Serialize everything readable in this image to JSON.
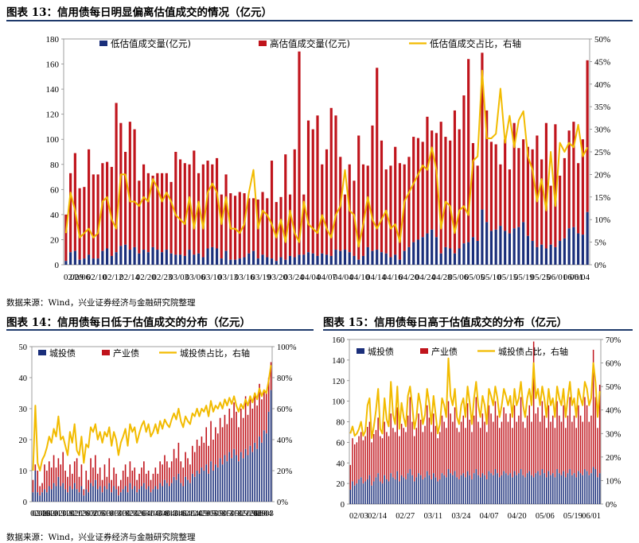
{
  "colors": {
    "navy": "#1a2e7a",
    "red": "#c0141c",
    "gold": "#f2bb00",
    "rule": "#1f3a6b"
  },
  "figure13": {
    "title": "图表 13：信用债每日明显偏离估值成交的情况（亿元）",
    "source": "数据来源：Wind，兴业证券经济与金融研究院整理"
  },
  "figure14": {
    "title": "图表 14：信用债每日低于估值成交的分布（亿元）",
    "source": "数据来源：Wind，兴业证券经济与金融研究院整理"
  },
  "figure15": {
    "title": "图表 15：信用债每日高于估值成交的分布（亿元）"
  },
  "chart_data": [
    {
      "id": "c13",
      "type": "bar",
      "stacked": true,
      "has_right_axis": true,
      "ylim": [
        0,
        180
      ],
      "yticks": [
        0,
        20,
        40,
        60,
        80,
        100,
        120,
        140,
        160,
        180
      ],
      "y2lim": [
        0,
        0.5
      ],
      "y2ticks": [
        "0%",
        "5%",
        "10%",
        "15%",
        "20%",
        "25%",
        "30%",
        "35%",
        "40%",
        "45%",
        "50%"
      ],
      "xticks": [
        "02/09",
        "02/06",
        "02/10",
        "02/12",
        "02/14",
        "02/20",
        "02/23",
        "03/03",
        "03/06",
        "03/10",
        "03/13",
        "03/16",
        "03/19",
        "03/20",
        "03/24",
        "04/04",
        "04/07",
        "04/04",
        "04/10",
        "04/14",
        "04/16",
        "04/20",
        "04/24",
        "04/28",
        "05/06",
        "05/05",
        "05/10",
        "05/15",
        "05/19",
        "05/25",
        "06/01",
        "06/01",
        "06/04"
      ],
      "legend": [
        "低估值成交量(亿元)",
        "高估值成交量(亿元)",
        "低估值成交占比，右轴"
      ],
      "bottom": [
        3,
        10,
        11,
        4,
        5,
        8,
        5,
        5,
        11,
        13,
        7,
        10,
        15,
        16,
        12,
        14,
        9,
        12,
        10,
        14,
        12,
        10,
        12,
        9,
        8,
        8,
        7,
        12,
        8,
        9,
        6,
        13,
        14,
        13,
        5,
        11,
        4,
        4,
        5,
        6,
        9,
        11,
        5,
        8,
        6,
        5,
        3,
        6,
        4,
        7,
        6,
        8,
        8,
        10,
        9,
        7,
        9,
        8,
        7,
        12,
        11,
        12,
        10,
        7,
        4,
        7,
        14,
        11,
        12,
        10,
        9,
        6,
        8,
        4,
        11,
        14,
        18,
        20,
        22,
        25,
        28,
        22,
        9,
        14,
        13,
        9,
        13,
        17,
        18,
        22,
        19,
        44,
        34,
        27,
        28,
        31,
        27,
        25,
        29,
        30,
        34,
        23,
        19,
        14,
        16,
        13,
        16,
        14,
        19,
        21,
        29,
        30,
        25,
        24,
        42
      ],
      "top": [
        40,
        73,
        89,
        61,
        62,
        92,
        72,
        72,
        81,
        82,
        78,
        129,
        113,
        90,
        114,
        108,
        67,
        80,
        73,
        71,
        73,
        73,
        73,
        66,
        90,
        84,
        81,
        80,
        91,
        73,
        80,
        83,
        80,
        85,
        56,
        72,
        57,
        55,
        58,
        57,
        53,
        53,
        52,
        58,
        53,
        83,
        50,
        54,
        88,
        56,
        92,
        170,
        56,
        115,
        108,
        119,
        80,
        92,
        125,
        119,
        86,
        56,
        80,
        67,
        103,
        80,
        79,
        111,
        157,
        99,
        76,
        79,
        94,
        81,
        80,
        86,
        102,
        101,
        98,
        118,
        107,
        105,
        114,
        102,
        99,
        123,
        108,
        135,
        164,
        97,
        79,
        169,
        123,
        98,
        96,
        80,
        100,
        76,
        113,
        93,
        100,
        94,
        92,
        103,
        84,
        113,
        63,
        112,
        71,
        85,
        107,
        114,
        81,
        100,
        163
      ],
      "ratio": [
        0.07,
        0.16,
        0.12,
        0.06,
        0.07,
        0.08,
        0.06,
        0.07,
        0.14,
        0.15,
        0.1,
        0.08,
        0.2,
        0.2,
        0.14,
        0.14,
        0.13,
        0.15,
        0.14,
        0.19,
        0.17,
        0.14,
        0.16,
        0.14,
        0.11,
        0.1,
        0.09,
        0.15,
        0.08,
        0.14,
        0.08,
        0.16,
        0.18,
        0.16,
        0.09,
        0.15,
        0.08,
        0.08,
        0.07,
        0.09,
        0.16,
        0.21,
        0.08,
        0.12,
        0.11,
        0.09,
        0.06,
        0.1,
        0.05,
        0.12,
        0.07,
        0.05,
        0.14,
        0.09,
        0.08,
        0.07,
        0.11,
        0.08,
        0.06,
        0.11,
        0.13,
        0.21,
        0.12,
        0.11,
        0.04,
        0.09,
        0.15,
        0.1,
        0.08,
        0.1,
        0.12,
        0.08,
        0.09,
        0.05,
        0.14,
        0.16,
        0.18,
        0.2,
        0.22,
        0.21,
        0.26,
        0.21,
        0.08,
        0.14,
        0.13,
        0.07,
        0.12,
        0.13,
        0.11,
        0.23,
        0.24,
        0.43,
        0.28,
        0.28,
        0.29,
        0.39,
        0.27,
        0.33,
        0.26,
        0.32,
        0.34,
        0.24,
        0.21,
        0.14,
        0.19,
        0.12,
        0.25,
        0.13,
        0.27,
        0.25,
        0.27,
        0.26,
        0.31,
        0.24,
        0.26
      ]
    },
    {
      "id": "c14",
      "type": "bar",
      "stacked": true,
      "has_right_axis": true,
      "ylim": [
        0,
        50
      ],
      "yticks": [
        0,
        10,
        20,
        30,
        40,
        50
      ],
      "y2lim": [
        0,
        1
      ],
      "y2ticks": [
        "0%",
        "20%",
        "40%",
        "60%",
        "80%",
        "100%"
      ],
      "xticks": [
        "02/03",
        "02/06",
        "02/10",
        "02/13",
        "02/18",
        "02/21",
        "02/26",
        "03/02",
        "03/05",
        "03/10",
        "03/13",
        "03/18",
        "03/23",
        "03/26",
        "03/31",
        "04/03",
        "04/08",
        "04/13",
        "04/16",
        "04/21",
        "04/24",
        "04/29",
        "05/05",
        "05/08",
        "05/13",
        "05/18",
        "05/21",
        "05/26",
        "05/29",
        "06/03",
        "06/04"
      ],
      "legend": [
        "城投债",
        "产业债",
        "城投债占比，右轴"
      ],
      "bottom": [
        3,
        10,
        3,
        2,
        3,
        4,
        3,
        5,
        4,
        6,
        5,
        8,
        5,
        6,
        4,
        3,
        5,
        4,
        6,
        4,
        3,
        5,
        2,
        4,
        3,
        6,
        5,
        7,
        4,
        5,
        3,
        5,
        4,
        6,
        3,
        5,
        4,
        2,
        3,
        4,
        5,
        3,
        6,
        4,
        5,
        3,
        4,
        5,
        6,
        4,
        5,
        3,
        4,
        5,
        4,
        6,
        5,
        7,
        6,
        5,
        6,
        8,
        7,
        9,
        6,
        5,
        8,
        7,
        6,
        9,
        8,
        10,
        9,
        11,
        10,
        12,
        9,
        13,
        10,
        12,
        11,
        14,
        12,
        15,
        13,
        16,
        14,
        17,
        15,
        13,
        16,
        14,
        17,
        15,
        18,
        16,
        19,
        17,
        21,
        19,
        23,
        22,
        29,
        36
      ],
      "top": [
        7,
        12,
        10,
        5,
        6,
        12,
        10,
        13,
        11,
        15,
        11,
        14,
        12,
        16,
        10,
        8,
        12,
        9,
        13,
        14,
        8,
        12,
        4,
        10,
        7,
        14,
        11,
        15,
        9,
        11,
        7,
        12,
        8,
        14,
        7,
        11,
        9,
        5,
        7,
        10,
        12,
        8,
        13,
        10,
        11,
        7,
        9,
        11,
        13,
        9,
        10,
        7,
        9,
        11,
        9,
        13,
        12,
        15,
        13,
        11,
        13,
        17,
        14,
        19,
        13,
        11,
        16,
        14,
        12,
        18,
        16,
        20,
        18,
        21,
        19,
        24,
        18,
        26,
        20,
        24,
        22,
        27,
        24,
        28,
        25,
        30,
        27,
        32,
        29,
        24,
        30,
        27,
        34,
        28,
        33,
        30,
        35,
        31,
        38,
        33,
        36,
        35,
        40,
        45
      ],
      "ratio": [
        0.2,
        0.62,
        0.25,
        0.2,
        0.27,
        0.3,
        0.35,
        0.42,
        0.38,
        0.47,
        0.42,
        0.55,
        0.4,
        0.42,
        0.36,
        0.3,
        0.45,
        0.38,
        0.5,
        0.33,
        0.3,
        0.42,
        0.25,
        0.37,
        0.35,
        0.48,
        0.45,
        0.5,
        0.4,
        0.45,
        0.38,
        0.45,
        0.42,
        0.48,
        0.36,
        0.45,
        0.4,
        0.3,
        0.38,
        0.42,
        0.47,
        0.36,
        0.5,
        0.45,
        0.48,
        0.38,
        0.44,
        0.49,
        0.52,
        0.45,
        0.5,
        0.42,
        0.45,
        0.5,
        0.44,
        0.52,
        0.47,
        0.53,
        0.5,
        0.48,
        0.53,
        0.57,
        0.53,
        0.6,
        0.52,
        0.48,
        0.55,
        0.52,
        0.5,
        0.57,
        0.55,
        0.6,
        0.55,
        0.6,
        0.58,
        0.62,
        0.55,
        0.65,
        0.58,
        0.62,
        0.6,
        0.64,
        0.6,
        0.66,
        0.62,
        0.67,
        0.63,
        0.68,
        0.62,
        0.58,
        0.63,
        0.6,
        0.66,
        0.62,
        0.68,
        0.64,
        0.7,
        0.66,
        0.73,
        0.68,
        0.72,
        0.7,
        0.78,
        0.88
      ]
    },
    {
      "id": "c15",
      "type": "bar",
      "stacked": true,
      "has_right_axis": true,
      "ylim": [
        0,
        160
      ],
      "yticks": [
        0,
        20,
        40,
        60,
        80,
        100,
        120,
        140,
        160
      ],
      "y2lim": [
        0,
        0.7
      ],
      "y2ticks": [
        "0%",
        "10%",
        "20%",
        "30%",
        "40%",
        "50%",
        "60%",
        "70%"
      ],
      "xticks": [
        "02/03",
        "02/14",
        "02/27",
        "03/11",
        "03/24",
        "04/07",
        "04/20",
        "05/06",
        "05/19",
        "06/01"
      ],
      "legend": [
        "城投债",
        "产业债",
        "城投债占比，右轴"
      ],
      "bottom": [
        14,
        22,
        18,
        20,
        24,
        26,
        20,
        22,
        24,
        28,
        18,
        22,
        26,
        30,
        22,
        20,
        28,
        24,
        22,
        30,
        26,
        24,
        32,
        22,
        28,
        26,
        24,
        30,
        34,
        28,
        22,
        26,
        30,
        28,
        24,
        26,
        32,
        28,
        24,
        30,
        26,
        22,
        24,
        30,
        28,
        26,
        34,
        30,
        28,
        32,
        26,
        24,
        28,
        30,
        26,
        32,
        28,
        24,
        30,
        34,
        28,
        26,
        30,
        28,
        24,
        32,
        30,
        28,
        34,
        30,
        26,
        28,
        32,
        30,
        28,
        30,
        26,
        32,
        28,
        30,
        34,
        28,
        26,
        30,
        32,
        28,
        26,
        30,
        32,
        28,
        34,
        30,
        26,
        32,
        28,
        30,
        26,
        34,
        30,
        28,
        32,
        26,
        30,
        34,
        28,
        30,
        26,
        32,
        30,
        28,
        34,
        32,
        28,
        30,
        36,
        34,
        26,
        30
      ],
      "top": [
        38,
        64,
        58,
        60,
        66,
        70,
        62,
        66,
        75,
        80,
        60,
        68,
        72,
        84,
        66,
        64,
        80,
        70,
        66,
        88,
        74,
        70,
        94,
        66,
        78,
        74,
        70,
        86,
        104,
        80,
        66,
        74,
        88,
        82,
        70,
        76,
        96,
        84,
        70,
        88,
        76,
        64,
        70,
        86,
        80,
        74,
        100,
        88,
        80,
        94,
        74,
        70,
        80,
        86,
        74,
        98,
        82,
        70,
        86,
        104,
        80,
        74,
        88,
        80,
        70,
        96,
        88,
        80,
        100,
        86,
        74,
        80,
        94,
        88,
        80,
        88,
        74,
        96,
        80,
        86,
        104,
        80,
        74,
        86,
        96,
        80,
        158,
        88,
        94,
        80,
        100,
        86,
        74,
        96,
        80,
        86,
        74,
        100,
        86,
        80,
        96,
        74,
        86,
        104,
        80,
        86,
        74,
        96,
        86,
        80,
        104,
        96,
        80,
        86,
        150,
        104,
        74,
        116
      ],
      "ratio": [
        0.3,
        0.33,
        0.29,
        0.3,
        0.32,
        0.35,
        0.29,
        0.31,
        0.42,
        0.45,
        0.28,
        0.33,
        0.4,
        0.49,
        0.32,
        0.3,
        0.45,
        0.36,
        0.33,
        0.52,
        0.38,
        0.34,
        0.5,
        0.32,
        0.43,
        0.37,
        0.33,
        0.46,
        0.5,
        0.42,
        0.32,
        0.37,
        0.47,
        0.42,
        0.34,
        0.38,
        0.49,
        0.43,
        0.34,
        0.46,
        0.38,
        0.3,
        0.34,
        0.45,
        0.42,
        0.37,
        0.62,
        0.46,
        0.42,
        0.49,
        0.37,
        0.34,
        0.42,
        0.45,
        0.37,
        0.5,
        0.43,
        0.34,
        0.45,
        0.52,
        0.42,
        0.37,
        0.46,
        0.42,
        0.34,
        0.49,
        0.46,
        0.42,
        0.5,
        0.45,
        0.37,
        0.42,
        0.49,
        0.46,
        0.42,
        0.46,
        0.37,
        0.49,
        0.42,
        0.45,
        0.52,
        0.42,
        0.37,
        0.45,
        0.49,
        0.42,
        0.6,
        0.45,
        0.49,
        0.42,
        0.5,
        0.45,
        0.37,
        0.49,
        0.42,
        0.45,
        0.37,
        0.5,
        0.45,
        0.42,
        0.49,
        0.37,
        0.45,
        0.52,
        0.42,
        0.45,
        0.37,
        0.49,
        0.45,
        0.42,
        0.52,
        0.49,
        0.42,
        0.45,
        0.6,
        0.52,
        0.37,
        0.48
      ]
    }
  ]
}
